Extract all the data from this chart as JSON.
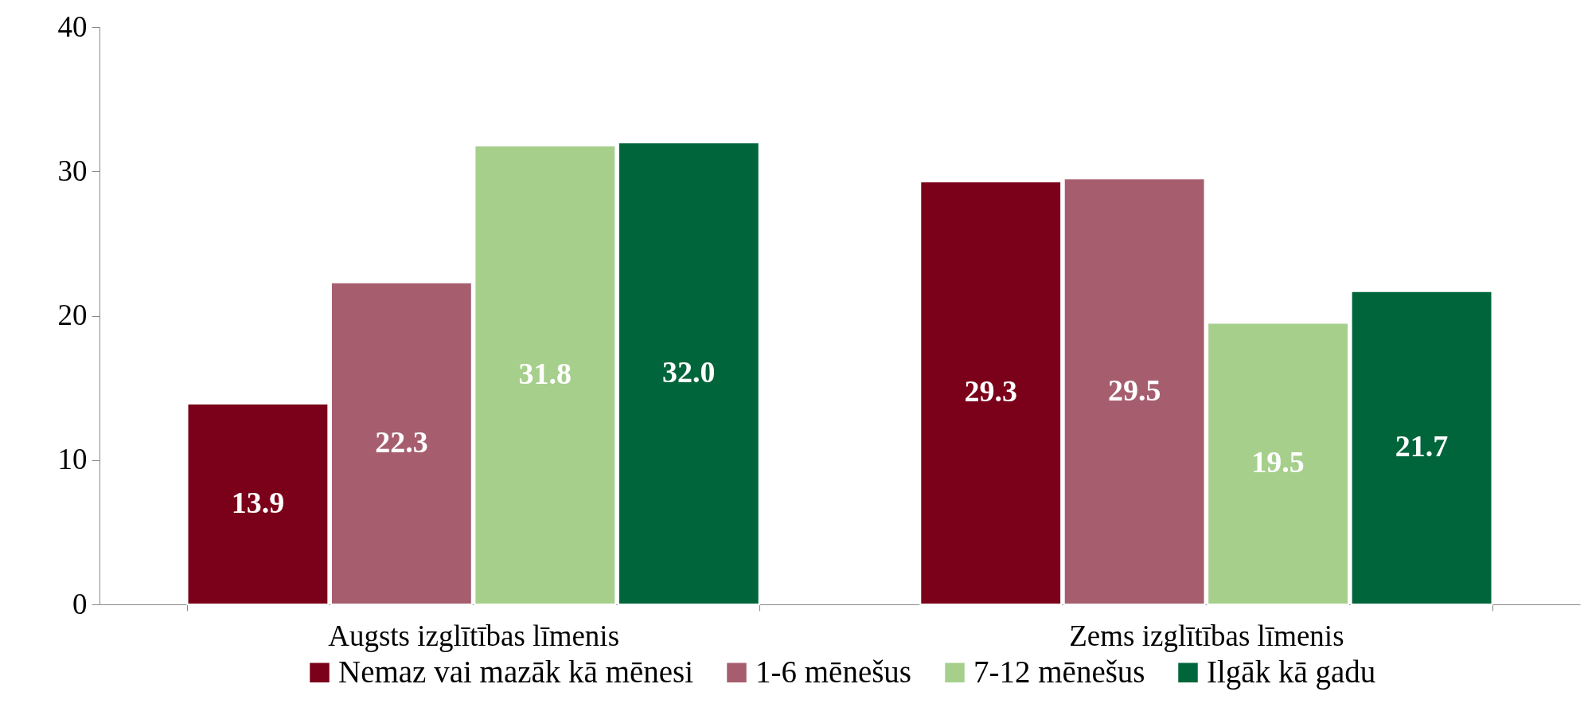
{
  "chart_data": {
    "type": "bar",
    "categories": [
      "Augsts izglītības līmenis",
      "Zems izglītības līmenis"
    ],
    "series": [
      {
        "name": "Nemaz vai mazāk kā mēnesi",
        "color": "#7b0019",
        "values": [
          13.9,
          29.3
        ],
        "value_labels": [
          "13.9",
          "29.3"
        ]
      },
      {
        "name": "1-6 mēnešus",
        "color": "#a65e6e",
        "values": [
          22.3,
          29.5
        ],
        "value_labels": [
          "22.3",
          "29.5"
        ]
      },
      {
        "name": "7-12 mēnešus",
        "color": "#a6cf8c",
        "values": [
          31.8,
          19.5
        ],
        "value_labels": [
          "31.8",
          "19.5"
        ]
      },
      {
        "name": "Ilgāk kā gadu",
        "color": "#00653a",
        "values": [
          32.0,
          21.7
        ],
        "value_labels": [
          "32.0",
          "21.7"
        ]
      }
    ],
    "ylim": [
      0,
      40
    ],
    "yticks": [
      0,
      10,
      20,
      30,
      40
    ],
    "grid": false,
    "legend": "bottom"
  }
}
